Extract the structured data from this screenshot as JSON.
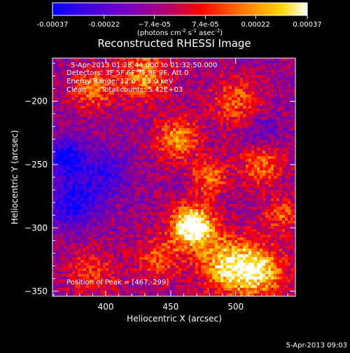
{
  "colorbar": {
    "ticks": [
      "-0.00037",
      "-0.00022",
      "−7.4e-05",
      "7.4e-05",
      "0.00022",
      "0.00037"
    ],
    "tick_values": [
      -0.00037,
      -0.00022,
      -7.4e-05,
      7.4e-05,
      0.00022,
      0.00037
    ],
    "range": [
      -0.00037,
      0.00037
    ],
    "unit_text": "(photons cm",
    "unit_exp1": "-2",
    "unit_mid": " s",
    "unit_exp2": "-1",
    "unit_mid2": " asec",
    "unit_exp3": "-2",
    "unit_end": ")",
    "palette": [
      "#0000ff",
      "#6a00cf",
      "#b00080",
      "#ff0000",
      "#ff8000",
      "#ffd000",
      "#ffffff"
    ]
  },
  "chart_data": {
    "type": "heatmap",
    "title": "Reconstructed RHESSI Image",
    "xlabel": "Heliocentric X (arcsec)",
    "ylabel": "Heliocentric Y (arcsec)",
    "xlim": [
      359,
      546
    ],
    "ylim": [
      -354,
      -166
    ],
    "xticks": [
      400,
      450,
      500
    ],
    "yticks": [
      -200,
      -250,
      -300,
      -350
    ],
    "annotations": [
      "5-Apr-2013 01:28:44.000 to 01:32:50.000",
      "Detectors: 3F 5F 6F 7F 8F 9F, Att 0",
      "Energy Range: 12.0 - 25.0 keV",
      "Clean",
      "Total counts: 5.42E+03",
      "Position of Peak = [467,-299]"
    ],
    "peak": [
      467,
      -299
    ]
  },
  "footer": {
    "timestamp": "5-Apr-2013 09:03"
  }
}
